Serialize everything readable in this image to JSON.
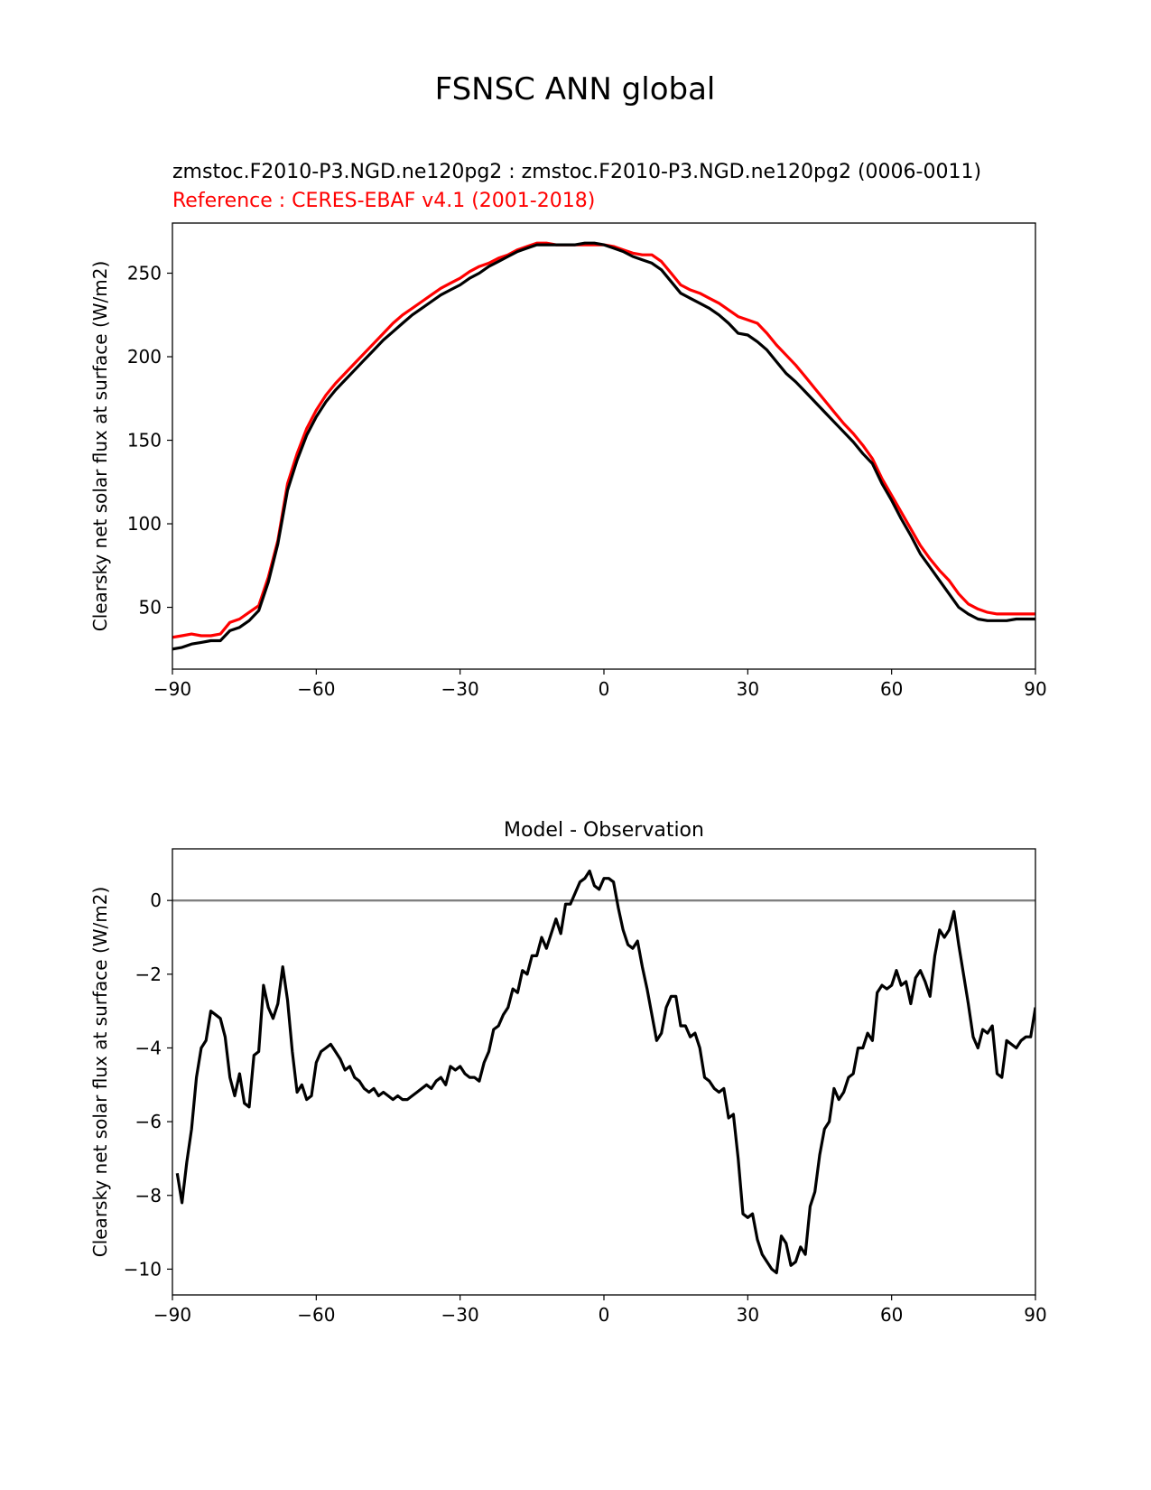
{
  "figure": {
    "title": "FSNSC ANN global"
  },
  "chart_data": [
    {
      "type": "line",
      "title_test": "zmstoc.F2010-P3.NGD.ne120pg2 : zmstoc.F2010-P3.NGD.ne120pg2 (0006-0011)",
      "title_ref": "Reference : CERES-EBAF v4.1 (2001-2018)",
      "xlabel": "",
      "ylabel": "Clearsky net solar flux at surface (W/m2)",
      "xlim": [
        -90,
        90
      ],
      "ylim": [
        13,
        280
      ],
      "xticks": [
        -90,
        -60,
        -30,
        0,
        30,
        60,
        90
      ],
      "xtick_labels": [
        "−90",
        "−60",
        "−30",
        "0",
        "30",
        "60",
        "90"
      ],
      "yticks": [
        50,
        100,
        150,
        200,
        250
      ],
      "ytick_labels": [
        "50",
        "100",
        "150",
        "200",
        "250"
      ],
      "grid": false,
      "colors": {
        "test": "#000000",
        "ref": "#ff0000"
      },
      "series": [
        {
          "key": "test",
          "x": [
            -90,
            -88,
            -86,
            -84,
            -82,
            -80,
            -78,
            -76,
            -74,
            -72,
            -70,
            -68,
            -66,
            -64,
            -62,
            -60,
            -58,
            -56,
            -54,
            -52,
            -50,
            -48,
            -46,
            -44,
            -42,
            -40,
            -38,
            -36,
            -34,
            -32,
            -30,
            -28,
            -26,
            -24,
            -22,
            -20,
            -18,
            -16,
            -14,
            -12,
            -10,
            -8,
            -6,
            -4,
            -2,
            0,
            2,
            4,
            6,
            8,
            10,
            12,
            14,
            16,
            18,
            20,
            22,
            24,
            26,
            28,
            30,
            32,
            34,
            36,
            38,
            40,
            42,
            44,
            46,
            48,
            50,
            52,
            54,
            56,
            58,
            60,
            62,
            64,
            66,
            68,
            70,
            72,
            74,
            76,
            78,
            80,
            82,
            84,
            86,
            88,
            90
          ],
          "values": [
            25,
            26,
            28,
            29,
            30,
            30,
            36,
            38,
            42,
            48,
            65,
            88,
            120,
            138,
            153,
            164,
            173,
            180,
            186,
            192,
            198,
            204,
            210,
            215,
            220,
            225,
            229,
            233,
            237,
            240,
            243,
            247,
            250,
            254,
            257,
            260,
            263,
            265,
            267,
            267,
            267,
            267,
            267,
            268,
            268,
            267,
            265,
            263,
            260,
            258,
            256,
            252,
            245,
            238,
            235,
            232,
            229,
            225,
            220,
            214,
            213,
            209,
            204,
            197,
            190,
            185,
            179,
            173,
            167,
            161,
            155,
            149,
            142,
            136,
            124,
            114,
            103,
            93,
            82,
            74,
            66,
            58,
            50,
            46,
            43,
            42,
            42,
            42,
            43,
            43,
            43
          ]
        },
        {
          "key": "ref",
          "x": [
            -90,
            -88,
            -86,
            -84,
            -82,
            -80,
            -78,
            -76,
            -74,
            -72,
            -70,
            -68,
            -66,
            -64,
            -62,
            -60,
            -58,
            -56,
            -54,
            -52,
            -50,
            -48,
            -46,
            -44,
            -42,
            -40,
            -38,
            -36,
            -34,
            -32,
            -30,
            -28,
            -26,
            -24,
            -22,
            -20,
            -18,
            -16,
            -14,
            -12,
            -10,
            -8,
            -6,
            -4,
            -2,
            0,
            2,
            4,
            6,
            8,
            10,
            12,
            14,
            16,
            18,
            20,
            22,
            24,
            26,
            28,
            30,
            32,
            34,
            36,
            38,
            40,
            42,
            44,
            46,
            48,
            50,
            52,
            54,
            56,
            58,
            60,
            62,
            64,
            66,
            68,
            70,
            72,
            74,
            76,
            78,
            80,
            82,
            84,
            86,
            88,
            90
          ],
          "values": [
            32,
            33,
            34,
            33,
            33,
            34,
            41,
            43,
            47,
            51,
            68,
            90,
            124,
            142,
            157,
            168,
            177,
            184,
            190,
            196,
            202,
            208,
            214,
            220,
            225,
            229,
            233,
            237,
            241,
            244,
            247,
            251,
            254,
            256,
            259,
            261,
            264,
            266,
            268,
            268,
            267,
            267,
            267,
            267,
            267,
            267,
            266,
            264,
            262,
            261,
            261,
            257,
            250,
            243,
            240,
            238,
            235,
            232,
            228,
            224,
            222,
            220,
            214,
            207,
            201,
            195,
            188,
            181,
            174,
            167,
            160,
            154,
            147,
            139,
            127,
            117,
            107,
            97,
            87,
            79,
            72,
            66,
            58,
            52,
            49,
            47,
            46,
            46,
            46,
            46,
            46
          ]
        }
      ]
    },
    {
      "type": "line",
      "title": "Model - Observation",
      "xlabel": "",
      "ylabel": "Clearsky net solar flux at surface (W/m2)",
      "xlim": [
        -90,
        90
      ],
      "ylim": [
        -10.7,
        1.4
      ],
      "xticks": [
        -90,
        -60,
        -30,
        0,
        30,
        60,
        90
      ],
      "xtick_labels": [
        "−90",
        "−60",
        "−30",
        "0",
        "30",
        "60",
        "90"
      ],
      "yticks": [
        -10,
        -8,
        -6,
        -4,
        -2,
        0
      ],
      "ytick_labels": [
        "−10",
        "−8",
        "−6",
        "−4",
        "−2",
        "0"
      ],
      "grid": false,
      "zero_line_color": "#808080",
      "line_color": "#000000",
      "x": [
        -89,
        -88,
        -87,
        -86,
        -85,
        -84,
        -83,
        -82,
        -81,
        -80,
        -79,
        -78,
        -77,
        -76,
        -75,
        -74,
        -73,
        -72,
        -71,
        -70,
        -69,
        -68,
        -67,
        -66,
        -65,
        -64,
        -63,
        -62,
        -61,
        -60,
        -59,
        -58,
        -57,
        -56,
        -55,
        -54,
        -53,
        -52,
        -51,
        -50,
        -49,
        -48,
        -47,
        -46,
        -45,
        -44,
        -43,
        -42,
        -41,
        -40,
        -39,
        -38,
        -37,
        -36,
        -35,
        -34,
        -33,
        -32,
        -31,
        -30,
        -29,
        -28,
        -27,
        -26,
        -25,
        -24,
        -23,
        -22,
        -21,
        -20,
        -19,
        -18,
        -17,
        -16,
        -15,
        -14,
        -13,
        -12,
        -11,
        -10,
        -9,
        -8,
        -7,
        -6,
        -5,
        -4,
        -3,
        -2,
        -1,
        0,
        1,
        2,
        3,
        4,
        5,
        6,
        7,
        8,
        9,
        10,
        11,
        12,
        13,
        14,
        15,
        16,
        17,
        18,
        19,
        20,
        21,
        22,
        23,
        24,
        25,
        26,
        27,
        28,
        29,
        30,
        31,
        32,
        33,
        34,
        35,
        36,
        37,
        38,
        39,
        40,
        41,
        42,
        43,
        44,
        45,
        46,
        47,
        48,
        49,
        50,
        51,
        52,
        53,
        54,
        55,
        56,
        57,
        58,
        59,
        60,
        61,
        62,
        63,
        64,
        65,
        66,
        67,
        68,
        69,
        70,
        71,
        72,
        73,
        74,
        75,
        76,
        77,
        78,
        79,
        80,
        81,
        82,
        83,
        84,
        85,
        86,
        87,
        88,
        89,
        90
      ],
      "values": [
        -7.4,
        -8.2,
        -7.1,
        -6.2,
        -4.8,
        -4.0,
        -3.8,
        -3.0,
        -3.1,
        -3.2,
        -3.7,
        -4.8,
        -5.3,
        -4.7,
        -5.5,
        -5.6,
        -4.2,
        -4.1,
        -2.3,
        -2.9,
        -3.2,
        -2.8,
        -1.8,
        -2.7,
        -4.1,
        -5.2,
        -5.0,
        -5.4,
        -5.3,
        -4.4,
        -4.1,
        -4.0,
        -3.9,
        -4.1,
        -4.3,
        -4.6,
        -4.5,
        -4.8,
        -4.9,
        -5.1,
        -5.2,
        -5.1,
        -5.3,
        -5.2,
        -5.3,
        -5.4,
        -5.3,
        -5.4,
        -5.4,
        -5.3,
        -5.2,
        -5.1,
        -5.0,
        -5.1,
        -4.9,
        -4.8,
        -5.0,
        -4.5,
        -4.6,
        -4.5,
        -4.7,
        -4.8,
        -4.8,
        -4.9,
        -4.4,
        -4.1,
        -3.5,
        -3.4,
        -3.1,
        -2.9,
        -2.4,
        -2.5,
        -1.9,
        -2.0,
        -1.5,
        -1.5,
        -1.0,
        -1.3,
        -0.9,
        -0.5,
        -0.9,
        -0.1,
        -0.1,
        0.2,
        0.5,
        0.6,
        0.8,
        0.4,
        0.3,
        0.6,
        0.6,
        0.5,
        -0.2,
        -0.8,
        -1.2,
        -1.3,
        -1.1,
        -1.8,
        -2.4,
        -3.1,
        -3.8,
        -3.6,
        -2.9,
        -2.6,
        -2.6,
        -3.4,
        -3.4,
        -3.7,
        -3.6,
        -4.0,
        -4.8,
        -4.9,
        -5.1,
        -5.2,
        -5.1,
        -5.9,
        -5.8,
        -7.0,
        -8.5,
        -8.6,
        -8.5,
        -9.2,
        -9.6,
        -9.8,
        -10.0,
        -10.1,
        -9.1,
        -9.3,
        -9.9,
        -9.8,
        -9.4,
        -9.6,
        -8.3,
        -7.9,
        -6.9,
        -6.2,
        -6.0,
        -5.1,
        -5.4,
        -5.2,
        -4.8,
        -4.7,
        -4.0,
        -4.0,
        -3.6,
        -3.8,
        -2.5,
        -2.3,
        -2.4,
        -2.3,
        -1.9,
        -2.3,
        -2.2,
        -2.8,
        -2.1,
        -1.9,
        -2.2,
        -2.6,
        -1.5,
        -0.8,
        -1.0,
        -0.8,
        -0.3,
        -1.2,
        -2.0,
        -2.8,
        -3.7,
        -4.0,
        -3.5,
        -3.6,
        -3.4,
        -4.7,
        -4.8,
        -3.8,
        -3.9,
        -4.0,
        -3.8,
        -3.7,
        -3.7,
        -2.9
      ]
    }
  ]
}
